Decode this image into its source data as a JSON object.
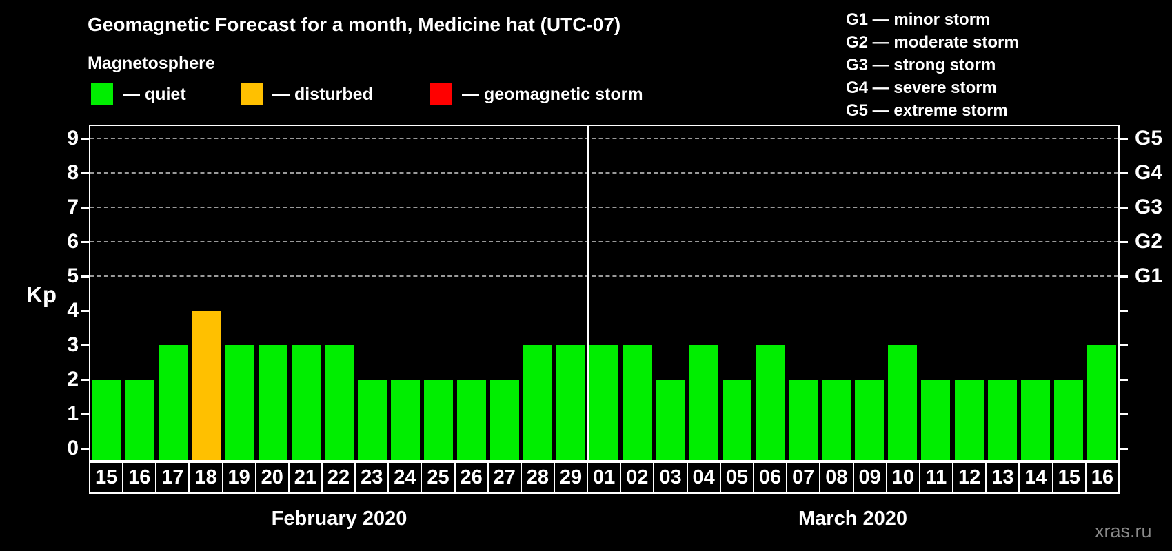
{
  "title": "Geomagnetic Forecast for a month, Medicine hat (UTC-07)",
  "subtitle": "Magnetosphere",
  "kp_legend": [
    {
      "status": "quiet",
      "label": "— quiet",
      "color": "#00ee00"
    },
    {
      "status": "disturbed",
      "label": "— disturbed",
      "color": "#ffc000"
    },
    {
      "status": "storm",
      "label": "— geomagnetic storm",
      "color": "#ff0000"
    }
  ],
  "storm_scale_legend": [
    "G1 — minor storm",
    "G2 — moderate storm",
    "G3 — strong storm",
    "G4 — severe storm",
    "G5 — extreme storm"
  ],
  "axes": {
    "left_label": "Kp",
    "left_ticks": [
      "0",
      "1",
      "2",
      "3",
      "4",
      "5",
      "6",
      "7",
      "8",
      "9"
    ],
    "right_ticks": [
      {
        "kp": 5,
        "label": "G1"
      },
      {
        "kp": 6,
        "label": "G2"
      },
      {
        "kp": 7,
        "label": "G3"
      },
      {
        "kp": 8,
        "label": "G4"
      },
      {
        "kp": 9,
        "label": "G5"
      }
    ]
  },
  "watermark": "xras.ru",
  "chart_data": {
    "type": "bar",
    "title": "Geomagnetic Forecast for a month, Medicine hat (UTC-07)",
    "ylabel": "Kp",
    "ylim": [
      0,
      9
    ],
    "grid": "horizontal dashed lines at Kp 5,6,7,8,9 (G1-G5 storm levels)",
    "legend_position": "top",
    "bar_color_rule": "kp<=3 quiet(green), kp=4 disturbed(orange), kp>=5 storm(red)",
    "months": [
      {
        "name": "February 2020",
        "days": [
          {
            "day": "15",
            "kp": 2,
            "status": "quiet"
          },
          {
            "day": "16",
            "kp": 2,
            "status": "quiet"
          },
          {
            "day": "17",
            "kp": 3,
            "status": "quiet"
          },
          {
            "day": "18",
            "kp": 4,
            "status": "disturbed"
          },
          {
            "day": "19",
            "kp": 3,
            "status": "quiet"
          },
          {
            "day": "20",
            "kp": 3,
            "status": "quiet"
          },
          {
            "day": "21",
            "kp": 3,
            "status": "quiet"
          },
          {
            "day": "22",
            "kp": 3,
            "status": "quiet"
          },
          {
            "day": "23",
            "kp": 2,
            "status": "quiet"
          },
          {
            "day": "24",
            "kp": 2,
            "status": "quiet"
          },
          {
            "day": "25",
            "kp": 2,
            "status": "quiet"
          },
          {
            "day": "26",
            "kp": 2,
            "status": "quiet"
          },
          {
            "day": "27",
            "kp": 2,
            "status": "quiet"
          },
          {
            "day": "28",
            "kp": 3,
            "status": "quiet"
          },
          {
            "day": "29",
            "kp": 3,
            "status": "quiet"
          }
        ]
      },
      {
        "name": "March 2020",
        "days": [
          {
            "day": "01",
            "kp": 3,
            "status": "quiet"
          },
          {
            "day": "02",
            "kp": 3,
            "status": "quiet"
          },
          {
            "day": "03",
            "kp": 2,
            "status": "quiet"
          },
          {
            "day": "04",
            "kp": 3,
            "status": "quiet"
          },
          {
            "day": "05",
            "kp": 2,
            "status": "quiet"
          },
          {
            "day": "06",
            "kp": 3,
            "status": "quiet"
          },
          {
            "day": "07",
            "kp": 2,
            "status": "quiet"
          },
          {
            "day": "08",
            "kp": 2,
            "status": "quiet"
          },
          {
            "day": "09",
            "kp": 2,
            "status": "quiet"
          },
          {
            "day": "10",
            "kp": 3,
            "status": "quiet"
          },
          {
            "day": "11",
            "kp": 2,
            "status": "quiet"
          },
          {
            "day": "12",
            "kp": 2,
            "status": "quiet"
          },
          {
            "day": "13",
            "kp": 2,
            "status": "quiet"
          },
          {
            "day": "14",
            "kp": 2,
            "status": "quiet"
          },
          {
            "day": "15",
            "kp": 2,
            "status": "quiet"
          },
          {
            "day": "16",
            "kp": 3,
            "status": "quiet"
          }
        ]
      }
    ]
  }
}
